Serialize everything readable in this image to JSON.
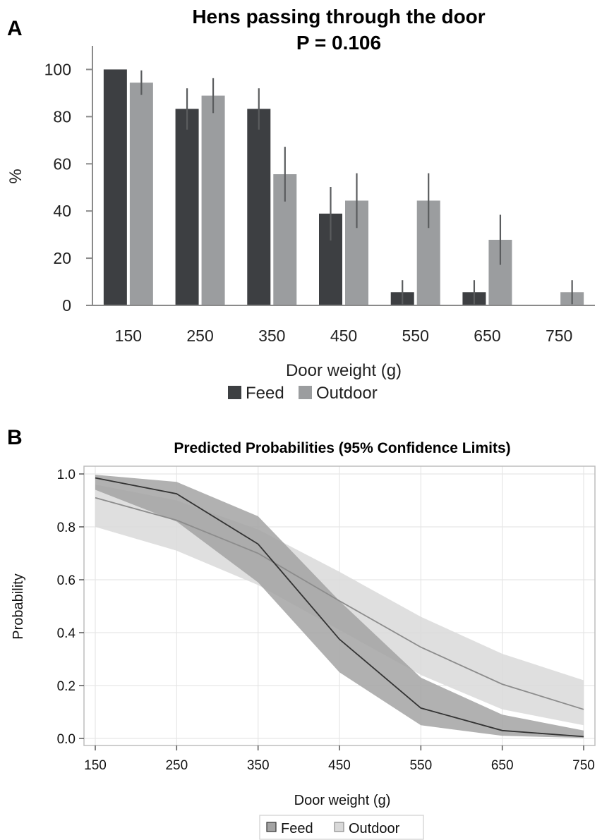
{
  "panel_a_letter": "A",
  "panel_b_letter": "B",
  "chart_data": [
    {
      "type": "bar",
      "title": "Hens passing through the door",
      "subtitle": "P = 0.106",
      "xlabel": "Door weight (g)",
      "ylabel": "%",
      "categories": [
        "150",
        "250",
        "350",
        "450",
        "550",
        "650",
        "750"
      ],
      "ylim": [
        0,
        110
      ],
      "yticks": [
        0,
        20,
        40,
        60,
        80,
        100
      ],
      "legend_position": "bottom",
      "series": [
        {
          "name": "Feed",
          "color": "#3d3f42",
          "values": [
            100,
            83.3,
            83.3,
            38.9,
            5.6,
            5.6,
            0
          ],
          "err_low": [
            100,
            74.5,
            74.5,
            27.5,
            0.5,
            0.5,
            0
          ],
          "err_high": [
            100,
            92,
            92,
            50.2,
            10.7,
            10.7,
            0
          ]
        },
        {
          "name": "Outdoor",
          "color": "#9b9d9f",
          "values": [
            94.4,
            88.9,
            55.6,
            44.4,
            44.4,
            27.8,
            5.6
          ],
          "err_low": [
            89.2,
            81.5,
            44,
            32.8,
            32.8,
            17.2,
            0.5
          ],
          "err_high": [
            99.6,
            96.3,
            67.2,
            56,
            56,
            38.4,
            10.7
          ]
        }
      ]
    },
    {
      "type": "line",
      "title": "Predicted Probabilities (95% Confidence Limits)",
      "xlabel": "Door weight (g)",
      "ylabel": "Probability",
      "x": [
        150,
        250,
        350,
        450,
        550,
        650,
        750
      ],
      "xlim": [
        150,
        750
      ],
      "ylim": [
        0,
        1
      ],
      "xticks": [
        150,
        250,
        350,
        450,
        550,
        650,
        750
      ],
      "yticks": [
        "0.0",
        "0.2",
        "0.4",
        "0.6",
        "0.8",
        "1.0"
      ],
      "grid": true,
      "legend_position": "bottom",
      "series": [
        {
          "name": "Outdoor",
          "line_color": "#8c8c8c",
          "band_color": "#d9d9d9",
          "values": [
            0.91,
            0.825,
            0.7,
            0.52,
            0.345,
            0.205,
            0.11
          ],
          "lower": [
            0.8,
            0.71,
            0.58,
            0.41,
            0.24,
            0.11,
            0.05
          ],
          "upper": [
            0.96,
            0.9,
            0.79,
            0.63,
            0.46,
            0.32,
            0.22
          ]
        },
        {
          "name": "Feed",
          "line_color": "#333333",
          "band_color": "#a3a3a3",
          "values": [
            0.985,
            0.925,
            0.735,
            0.375,
            0.115,
            0.03,
            0.007
          ],
          "lower": [
            0.94,
            0.82,
            0.59,
            0.25,
            0.05,
            0.01,
            0.002
          ],
          "upper": [
            0.997,
            0.97,
            0.84,
            0.52,
            0.23,
            0.09,
            0.03
          ]
        }
      ]
    }
  ]
}
